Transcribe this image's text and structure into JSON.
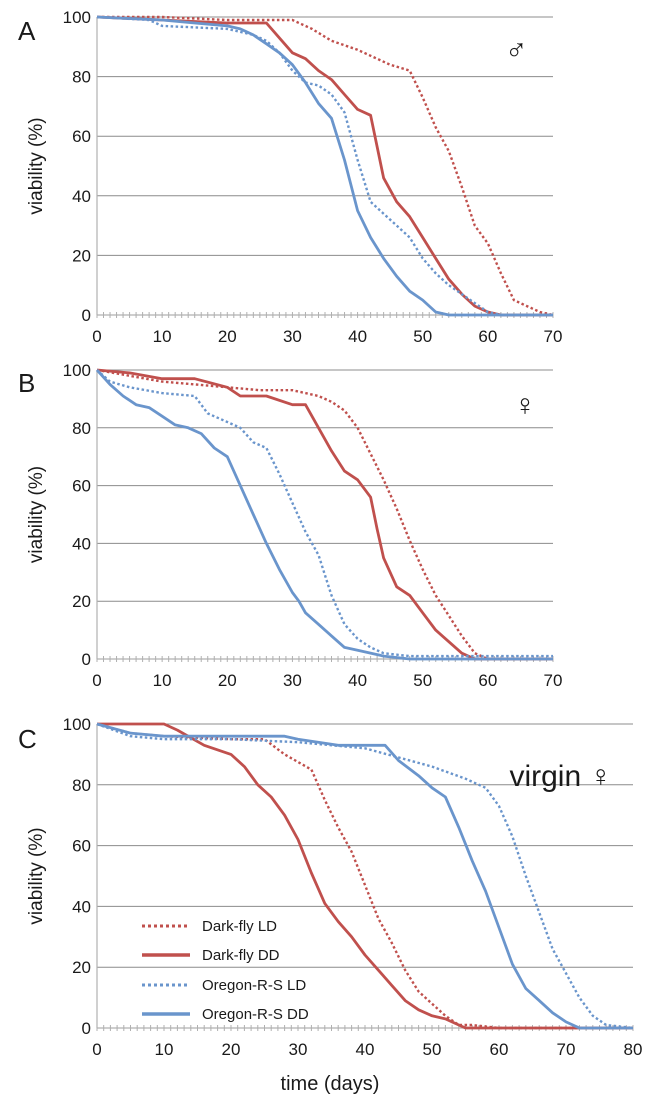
{
  "colors": {
    "darkfly": "#c0504d",
    "oregon": "#6a95cc",
    "grid": "#8c8c8c",
    "axis": "#b0b0b0"
  },
  "figure": {
    "xlabel": "time (days)"
  },
  "legend": [
    {
      "label": "Dark-fly  LD",
      "series": "darkfly",
      "style": "dotted"
    },
    {
      "label": "Dark-fly  DD",
      "series": "darkfly",
      "style": "solid"
    },
    {
      "label": "Oregon-R-S  LD",
      "series": "oregon",
      "style": "dotted"
    },
    {
      "label": "Oregon-R-S  DD",
      "series": "oregon",
      "style": "solid"
    }
  ],
  "chart_data": [
    {
      "type": "line",
      "panel": "A",
      "symbol": "♂",
      "ylabel": "viability (%)",
      "xlabel": "",
      "xlim": [
        0,
        70
      ],
      "ylim": [
        0,
        100
      ],
      "xticks": [
        "0",
        "10",
        "20",
        "30",
        "40",
        "50",
        "60",
        "70"
      ],
      "yticks": [
        "0",
        "20",
        "40",
        "60",
        "80",
        "100"
      ],
      "grid": true,
      "series": [
        {
          "name": "Dark-fly  LD",
          "color": "darkfly",
          "style": "dotted",
          "x": [
            0,
            10,
            20,
            30,
            33,
            36,
            40,
            45,
            48,
            50,
            52,
            54,
            56,
            58,
            60,
            62,
            64,
            66,
            68,
            70
          ],
          "y": [
            100,
            100,
            99,
            99,
            96,
            92,
            89,
            84,
            82,
            73,
            63,
            55,
            43,
            30,
            24,
            14,
            5,
            3,
            1,
            0
          ]
        },
        {
          "name": "Dark-fly  DD",
          "color": "darkfly",
          "style": "solid",
          "x": [
            0,
            10,
            20,
            26,
            28,
            30,
            32,
            34,
            36,
            38,
            40,
            42,
            44,
            46,
            48,
            50,
            52,
            54,
            56,
            58,
            60,
            62,
            64,
            70
          ],
          "y": [
            100,
            99,
            98,
            98,
            93,
            88,
            86,
            82,
            79,
            74,
            69,
            67,
            46,
            38,
            33,
            26,
            19,
            12,
            7,
            3,
            1,
            0,
            0,
            0
          ]
        },
        {
          "name": "Oregon-R-S  LD",
          "color": "oregon",
          "style": "dotted",
          "x": [
            0,
            8,
            10,
            20,
            24,
            26,
            28,
            30,
            32,
            34,
            36,
            38,
            40,
            42,
            44,
            46,
            48,
            50,
            52,
            54,
            56,
            58,
            60,
            62,
            70
          ],
          "y": [
            100,
            99,
            97,
            96,
            94,
            92,
            88,
            82,
            78,
            77,
            74,
            68,
            52,
            38,
            34,
            30,
            26,
            19,
            14,
            10,
            7,
            4,
            1,
            0,
            0
          ]
        },
        {
          "name": "Oregon-R-S  DD",
          "color": "oregon",
          "style": "solid",
          "x": [
            0,
            10,
            15,
            20,
            22,
            24,
            26,
            28,
            30,
            32,
            34,
            36,
            38,
            40,
            42,
            44,
            46,
            48,
            50,
            52,
            54,
            56,
            70
          ],
          "y": [
            100,
            99,
            98,
            97,
            96,
            94,
            91,
            88,
            84,
            78,
            71,
            66,
            52,
            35,
            26,
            19,
            13,
            8,
            5,
            1,
            0,
            0,
            0
          ]
        }
      ]
    },
    {
      "type": "line",
      "panel": "B",
      "symbol": "♀",
      "ylabel": "viability (%)",
      "xlabel": "",
      "xlim": [
        0,
        70
      ],
      "ylim": [
        0,
        100
      ],
      "xticks": [
        "0",
        "10",
        "20",
        "30",
        "40",
        "50",
        "60",
        "70"
      ],
      "yticks": [
        "0",
        "20",
        "40",
        "60",
        "80",
        "100"
      ],
      "grid": true,
      "series": [
        {
          "name": "Dark-fly  LD",
          "color": "darkfly",
          "style": "dotted",
          "x": [
            0,
            5,
            10,
            15,
            20,
            25,
            30,
            34,
            36,
            38,
            40,
            42,
            44,
            46,
            48,
            50,
            52,
            54,
            56,
            58,
            60,
            70
          ],
          "y": [
            100,
            98,
            96,
            95,
            94,
            93,
            93,
            91,
            89,
            86,
            80,
            71,
            62,
            52,
            41,
            31,
            22,
            15,
            8,
            2,
            0,
            0
          ]
        },
        {
          "name": "Dark-fly  DD",
          "color": "darkfly",
          "style": "solid",
          "x": [
            0,
            5,
            10,
            15,
            20,
            22,
            26,
            30,
            32,
            34,
            36,
            38,
            40,
            42,
            43,
            44,
            46,
            48,
            50,
            52,
            54,
            56,
            58,
            70
          ],
          "y": [
            100,
            99,
            97,
            97,
            94,
            91,
            91,
            88,
            88,
            80,
            72,
            65,
            62,
            56,
            45,
            35,
            25,
            22,
            16,
            10,
            6,
            2,
            0,
            0
          ]
        },
        {
          "name": "Oregon-R-S  LD",
          "color": "oregon",
          "style": "dotted",
          "x": [
            0,
            2,
            5,
            10,
            15,
            17,
            20,
            22,
            24,
            26,
            28,
            30,
            32,
            34,
            36,
            38,
            40,
            42,
            44,
            48,
            70
          ],
          "y": [
            100,
            96,
            94,
            92,
            91,
            85,
            82,
            80,
            75,
            73,
            64,
            54,
            44,
            36,
            22,
            12,
            7,
            4,
            2,
            1,
            1
          ]
        },
        {
          "name": "Oregon-R-S  DD",
          "color": "oregon",
          "style": "solid",
          "x": [
            0,
            2,
            4,
            6,
            8,
            10,
            12,
            14,
            16,
            18,
            20,
            22,
            24,
            26,
            28,
            30,
            31,
            32,
            34,
            36,
            38,
            40,
            44,
            48,
            50,
            70
          ],
          "y": [
            100,
            95,
            91,
            88,
            87,
            84,
            81,
            80,
            78,
            73,
            70,
            60,
            50,
            40,
            31,
            23,
            20,
            16,
            12,
            8,
            4,
            3,
            1,
            0,
            0,
            0
          ]
        }
      ]
    },
    {
      "type": "line",
      "panel": "C",
      "symbol": "virgin ♀",
      "ylabel": "viability (%)",
      "xlabel": "time (days)",
      "xlim": [
        0,
        80
      ],
      "ylim": [
        0,
        100
      ],
      "xticks": [
        "0",
        "10",
        "20",
        "30",
        "40",
        "50",
        "60",
        "70",
        "80"
      ],
      "yticks": [
        "0",
        "20",
        "40",
        "60",
        "80",
        "100"
      ],
      "grid": true,
      "legend_position": "bottom-left",
      "series": [
        {
          "name": "Dark-fly  LD",
          "color": "darkfly",
          "style": "dotted",
          "x": [
            0,
            5,
            10,
            20,
            25,
            28,
            32,
            34,
            36,
            38,
            40,
            42,
            44,
            46,
            48,
            50,
            52,
            54,
            56,
            60,
            80
          ],
          "y": [
            100,
            97,
            96,
            95,
            95,
            90,
            85,
            75,
            66,
            58,
            47,
            36,
            28,
            19,
            12,
            8,
            4,
            1,
            1,
            0,
            0
          ]
        },
        {
          "name": "Dark-fly  DD",
          "color": "darkfly",
          "style": "solid",
          "x": [
            0,
            10,
            12,
            16,
            20,
            22,
            24,
            26,
            28,
            30,
            32,
            34,
            36,
            38,
            40,
            42,
            44,
            46,
            48,
            50,
            52,
            54,
            55,
            80
          ],
          "y": [
            100,
            100,
            98,
            93,
            90,
            86,
            80,
            76,
            70,
            62,
            51,
            41,
            35,
            30,
            24,
            19,
            14,
            9,
            6,
            4,
            3,
            1,
            0,
            0
          ]
        },
        {
          "name": "Oregon-R-S  LD",
          "color": "oregon",
          "style": "dotted",
          "x": [
            0,
            5,
            10,
            20,
            30,
            40,
            45,
            50,
            55,
            58,
            60,
            62,
            64,
            66,
            68,
            70,
            72,
            74,
            76,
            80
          ],
          "y": [
            100,
            96,
            95,
            95,
            94,
            92,
            89,
            86,
            82,
            79,
            73,
            63,
            50,
            38,
            26,
            18,
            10,
            4,
            1,
            0
          ]
        },
        {
          "name": "Oregon-R-S  DD",
          "color": "oregon",
          "style": "solid",
          "x": [
            0,
            5,
            10,
            20,
            28,
            30,
            33,
            36,
            40,
            43,
            45,
            48,
            50,
            52,
            54,
            56,
            58,
            60,
            62,
            64,
            66,
            68,
            70,
            72,
            74,
            80
          ],
          "y": [
            100,
            97,
            96,
            96,
            96,
            95,
            94,
            93,
            93,
            93,
            88,
            83,
            79,
            76,
            66,
            55,
            45,
            33,
            21,
            13,
            9,
            5,
            2,
            0,
            0,
            0
          ]
        }
      ]
    }
  ]
}
